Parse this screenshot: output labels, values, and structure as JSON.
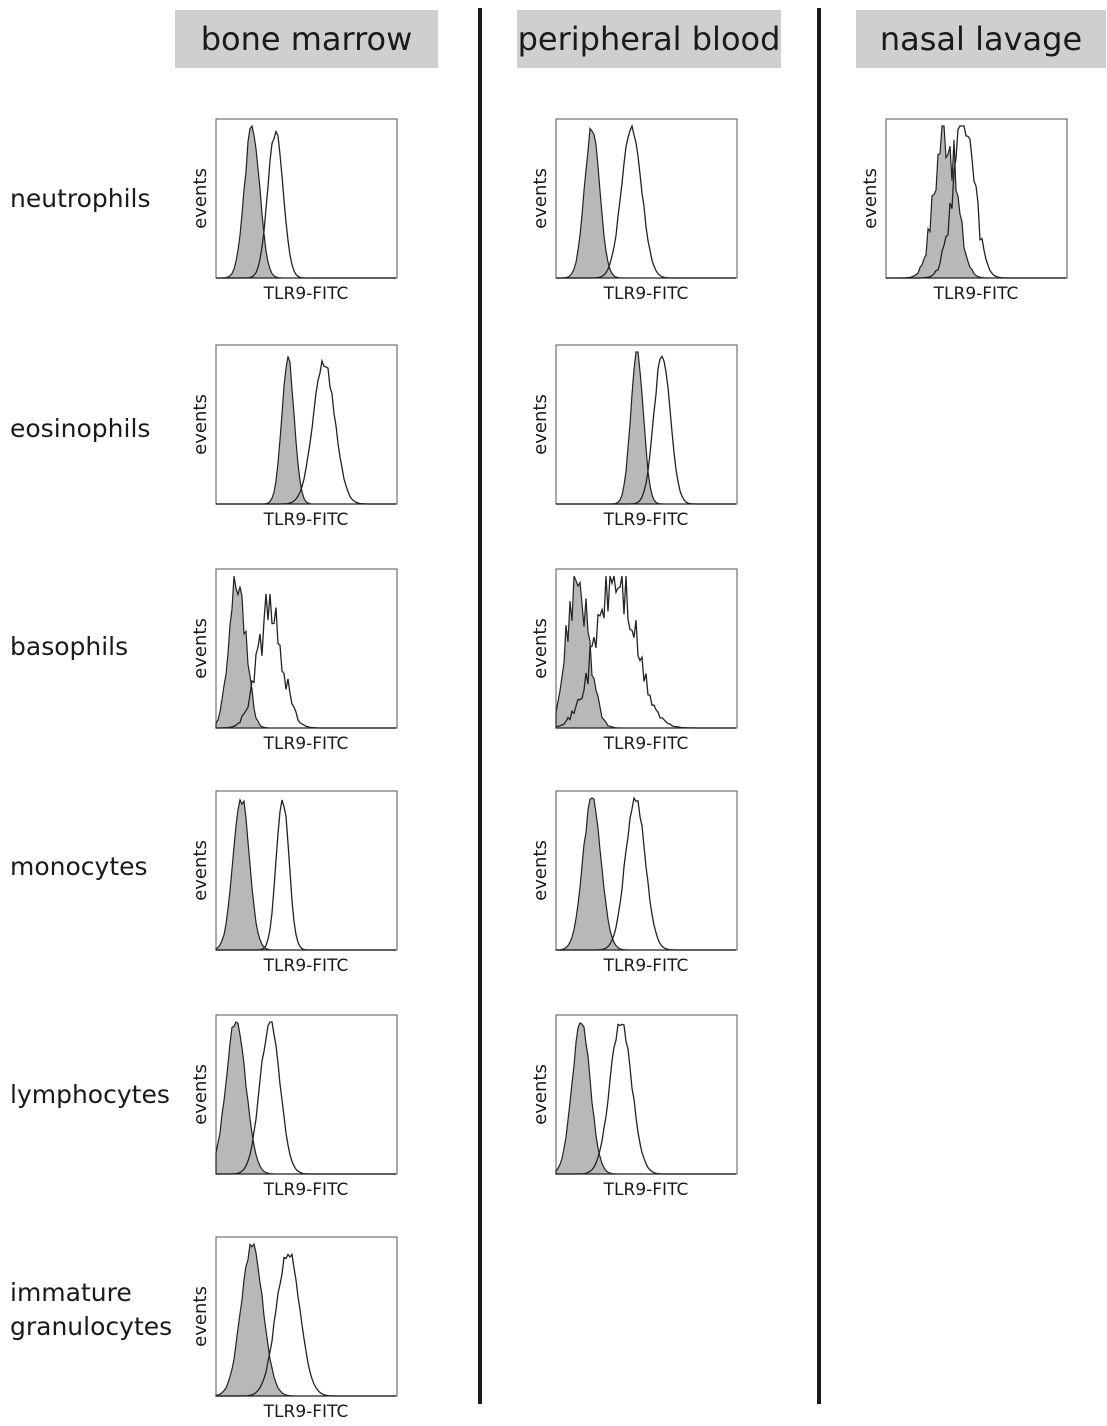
{
  "columns": [
    "bone marrow",
    "peripheral blood",
    "nasal lavage"
  ],
  "rows": [
    "neutrophils",
    "eosinophils",
    "basophils",
    "monocytes",
    "lymphocytes",
    "immature granulocytes"
  ],
  "axis": {
    "ylabel": "events",
    "xlabel": "TLR9-FITC"
  },
  "colors": {
    "isotype_fill": "#b8b8b8",
    "line": "#222222",
    "header_bg": "#cfcfcf"
  },
  "chart_data": {
    "type": "histogram-grid",
    "xlabel": "TLR9-FITC",
    "ylabel": "events",
    "series_styles": {
      "isotype": "grey filled",
      "TLR9": "open outline"
    },
    "panels": [
      {
        "row": "neutrophils",
        "column": "bone marrow",
        "isotype": {
          "peak": 0.2,
          "width": 0.042,
          "height": 1.0
        },
        "stain": {
          "peak": 0.33,
          "width": 0.042,
          "height": 0.96
        }
      },
      {
        "row": "neutrophils",
        "column": "peripheral blood",
        "isotype": {
          "peak": 0.2,
          "width": 0.042,
          "height": 1.0
        },
        "stain": {
          "peak": 0.42,
          "width": 0.055,
          "height": 1.0
        }
      },
      {
        "row": "neutrophils",
        "column": "nasal lavage",
        "isotype": {
          "peak": 0.33,
          "width": 0.06,
          "height": 1.0
        },
        "stain": {
          "peak": 0.43,
          "width": 0.06,
          "height": 1.0
        }
      },
      {
        "row": "eosinophils",
        "column": "bone marrow",
        "isotype": {
          "peak": 0.4,
          "width": 0.035,
          "height": 0.95
        },
        "stain": {
          "peak": 0.6,
          "width": 0.06,
          "height": 0.93
        }
      },
      {
        "row": "eosinophils",
        "column": "peripheral blood",
        "isotype": {
          "peak": 0.45,
          "width": 0.035,
          "height": 1.0
        },
        "stain": {
          "peak": 0.59,
          "width": 0.045,
          "height": 1.0
        }
      },
      {
        "row": "basophils",
        "column": "bone marrow",
        "isotype": {
          "peak": 0.12,
          "width": 0.045,
          "height": 1.0
        },
        "stain": {
          "peak": 0.3,
          "width": 0.07,
          "height": 0.75
        }
      },
      {
        "row": "basophils",
        "column": "peripheral blood",
        "isotype": {
          "peak": 0.12,
          "width": 0.06,
          "height": 1.0
        },
        "stain": {
          "peak": 0.33,
          "width": 0.11,
          "height": 0.98
        }
      },
      {
        "row": "monocytes",
        "column": "bone marrow",
        "isotype": {
          "peak": 0.14,
          "width": 0.045,
          "height": 1.0
        },
        "stain": {
          "peak": 0.37,
          "width": 0.035,
          "height": 1.0
        }
      },
      {
        "row": "monocytes",
        "column": "peripheral blood",
        "isotype": {
          "peak": 0.2,
          "width": 0.05,
          "height": 1.0
        },
        "stain": {
          "peak": 0.44,
          "width": 0.055,
          "height": 1.0
        }
      },
      {
        "row": "lymphocytes",
        "column": "bone marrow",
        "isotype": {
          "peak": 0.11,
          "width": 0.055,
          "height": 1.0
        },
        "stain": {
          "peak": 0.3,
          "width": 0.055,
          "height": 1.0
        }
      },
      {
        "row": "lymphocytes",
        "column": "peripheral blood",
        "isotype": {
          "peak": 0.14,
          "width": 0.05,
          "height": 1.0
        },
        "stain": {
          "peak": 0.36,
          "width": 0.06,
          "height": 1.0
        }
      },
      {
        "row": "immature granulocytes",
        "column": "bone marrow",
        "isotype": {
          "peak": 0.2,
          "width": 0.06,
          "height": 1.0
        },
        "stain": {
          "peak": 0.4,
          "width": 0.065,
          "height": 0.95
        }
      }
    ]
  }
}
